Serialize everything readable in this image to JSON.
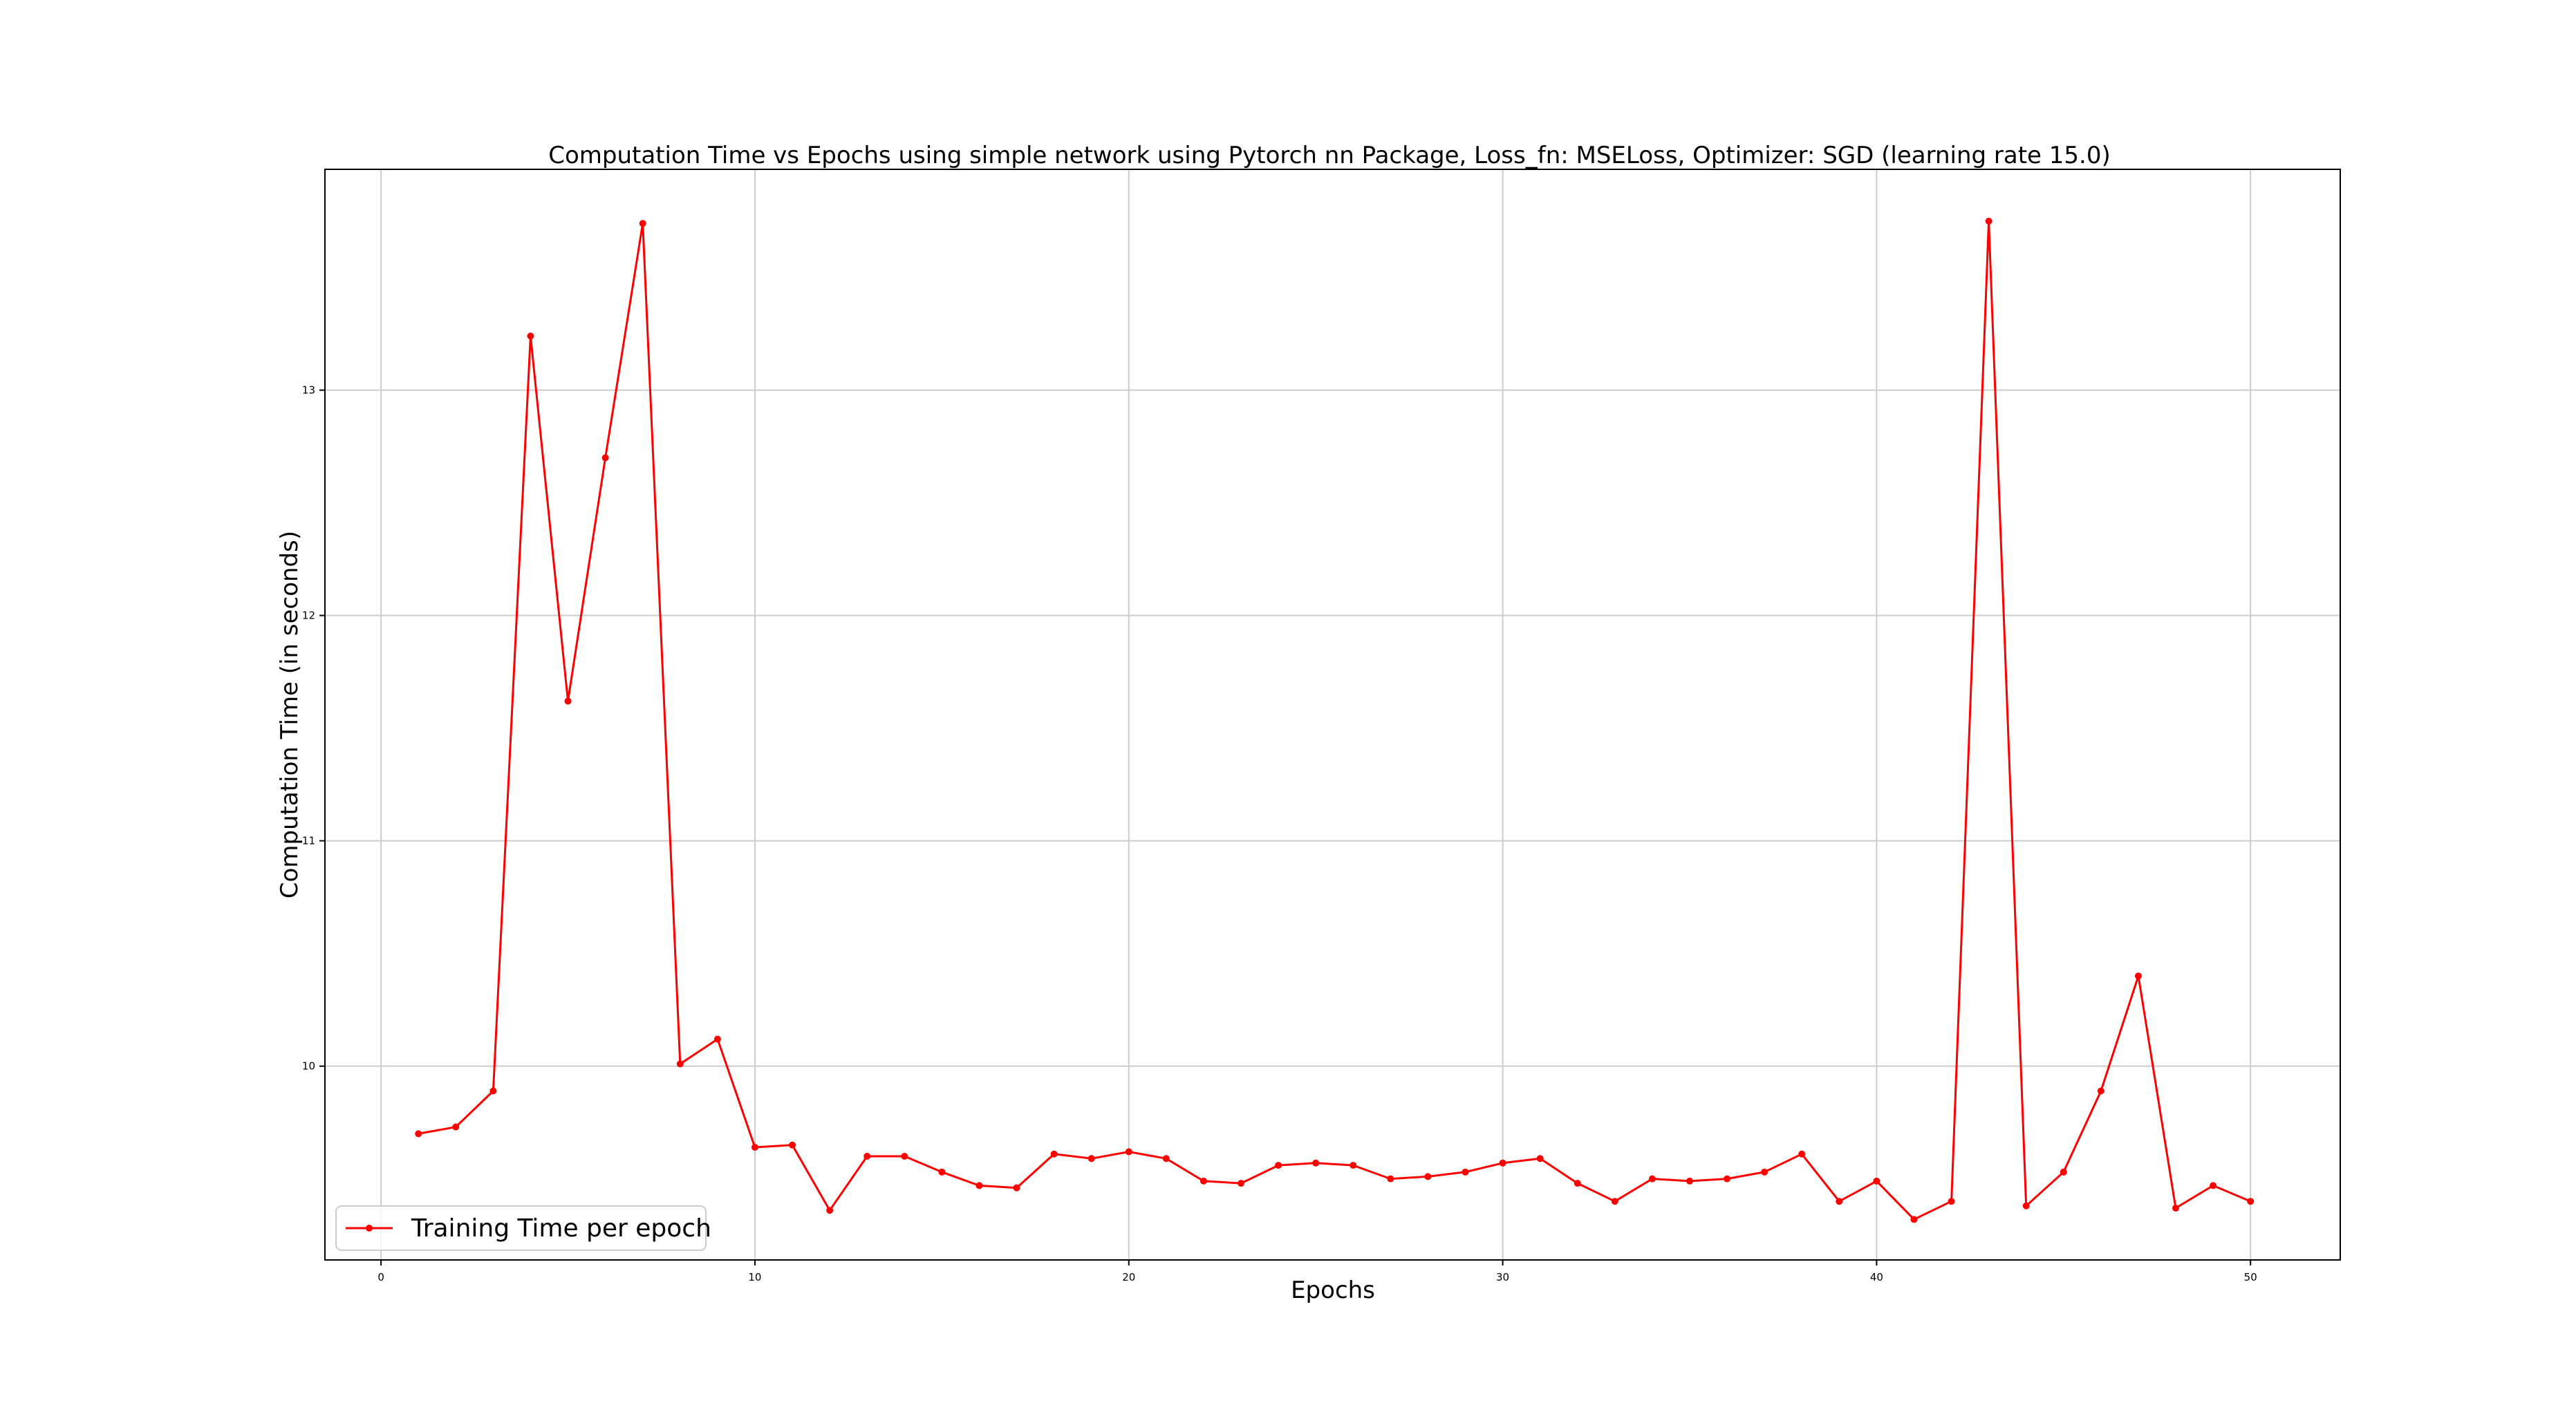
{
  "chart_data": {
    "type": "line",
    "title": "Computation Time vs Epochs using simple network using Pytorch nn Package, Loss_fn: MSELoss, Optimizer: SGD (learning rate 15.0)",
    "xlabel": "Epochs",
    "ylabel": "Computation Time (in seconds)",
    "xlim": [
      -1.5,
      52.4
    ],
    "ylim": [
      9.14,
      13.98
    ],
    "xticks": [
      0,
      10,
      20,
      30,
      40,
      50
    ],
    "yticks": [
      10,
      11,
      12,
      13
    ],
    "grid": true,
    "legend_position": "lower-left",
    "colors": {
      "series": "#ff0000",
      "grid": "#cccccc",
      "frame": "#000000"
    },
    "x": [
      1,
      2,
      3,
      4,
      5,
      6,
      7,
      8,
      9,
      10,
      11,
      12,
      13,
      14,
      15,
      16,
      17,
      18,
      19,
      20,
      21,
      22,
      23,
      24,
      25,
      26,
      27,
      28,
      29,
      30,
      31,
      32,
      33,
      34,
      35,
      36,
      37,
      38,
      39,
      40,
      41,
      42,
      43,
      44,
      45,
      46,
      47,
      48,
      49,
      50
    ],
    "series": [
      {
        "name": "Training Time per epoch",
        "values": [
          9.7,
          9.73,
          9.89,
          13.24,
          11.62,
          12.7,
          13.74,
          10.01,
          10.12,
          9.64,
          9.65,
          9.36,
          9.6,
          9.6,
          9.53,
          9.47,
          9.46,
          9.61,
          9.59,
          9.62,
          9.59,
          9.49,
          9.48,
          9.56,
          9.57,
          9.56,
          9.5,
          9.51,
          9.53,
          9.57,
          9.59,
          9.48,
          9.4,
          9.5,
          9.49,
          9.5,
          9.53,
          9.61,
          9.4,
          9.49,
          9.32,
          9.4,
          13.75,
          9.38,
          9.53,
          9.89,
          10.4,
          9.37,
          9.47,
          9.4
        ]
      }
    ]
  }
}
